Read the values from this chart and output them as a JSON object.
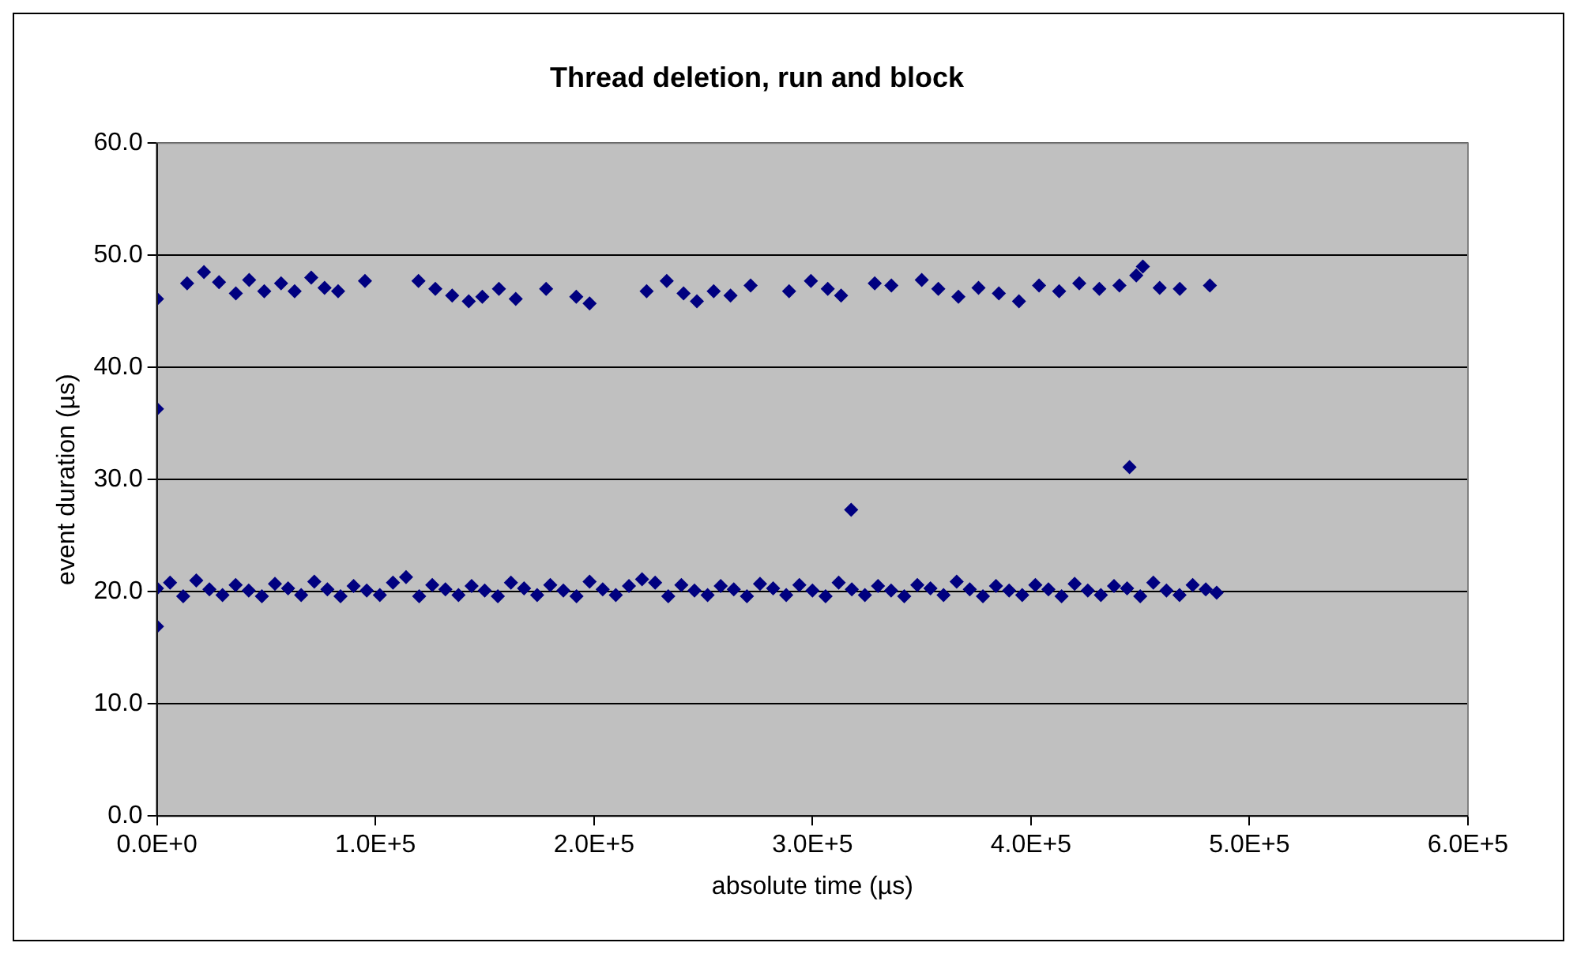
{
  "chart_data": {
    "type": "scatter",
    "title": "Thread deletion, run and block",
    "xlabel": "absolute time (µs)",
    "ylabel": "event duration (µs)",
    "series": [
      {
        "color": "#000080",
        "x": [
          0,
          13800,
          21500,
          28400,
          36100,
          42200,
          49100,
          56800,
          63000,
          70600,
          76700,
          82900,
          95200,
          119700,
          127400,
          135100,
          142700,
          148900,
          156500,
          164200,
          178100,
          191900,
          198000,
          224100,
          233300,
          241000,
          247100,
          254800,
          262500,
          271700,
          289300,
          299300,
          307000,
          313100,
          328500,
          336100,
          350000,
          357600,
          366800,
          376000,
          385300,
          394500,
          403700,
          412900,
          422100,
          431300,
          440500,
          448200,
          451200,
          458900,
          468100,
          481900,
          0,
          317700,
          445100,
          0,
          0,
          6000,
          12000,
          18000,
          24000,
          30000,
          36000,
          42000,
          48000,
          54000,
          60000,
          66000,
          72000,
          78000,
          84000,
          90000,
          96000,
          102000,
          108000,
          114000,
          120000,
          126000,
          132000,
          138000,
          144000,
          150000,
          156000,
          162000,
          168000,
          174000,
          180000,
          186000,
          192000,
          198000,
          204000,
          210000,
          216000,
          222000,
          228000,
          234000,
          240000,
          246000,
          252000,
          258000,
          264000,
          270000,
          276000,
          282000,
          288000,
          294000,
          300000,
          306000,
          312000,
          318000,
          324000,
          330000,
          336000,
          342000,
          348000,
          354000,
          360000,
          366000,
          372000,
          378000,
          384000,
          390000,
          396000,
          402000,
          408000,
          414000,
          420000,
          426000,
          432000,
          438000,
          444000,
          450000,
          456000,
          462000,
          468000,
          474000,
          480000,
          485000
        ],
        "values": [
          46.1,
          47.5,
          48.5,
          47.6,
          46.6,
          47.8,
          46.8,
          47.5,
          46.8,
          48.0,
          47.1,
          46.8,
          47.7,
          47.7,
          47.0,
          46.4,
          45.9,
          46.3,
          47.0,
          46.1,
          47.0,
          46.3,
          45.7,
          46.8,
          47.7,
          46.6,
          45.9,
          46.8,
          46.4,
          47.3,
          46.8,
          47.7,
          47.0,
          46.4,
          47.5,
          47.3,
          47.8,
          47.0,
          46.3,
          47.1,
          46.6,
          45.9,
          47.3,
          46.8,
          47.5,
          47.0,
          47.3,
          48.2,
          49.0,
          47.1,
          47.0,
          47.3,
          36.3,
          27.3,
          31.1,
          16.9,
          20.3,
          20.8,
          19.6,
          21.0,
          20.2,
          19.7,
          20.6,
          20.1,
          19.6,
          20.7,
          20.3,
          19.7,
          20.9,
          20.2,
          19.6,
          20.5,
          20.1,
          19.7,
          20.8,
          21.3,
          19.6,
          20.6,
          20.2,
          19.7,
          20.5,
          20.1,
          19.6,
          20.8,
          20.3,
          19.7,
          20.6,
          20.1,
          19.6,
          20.9,
          20.2,
          19.7,
          20.5,
          21.1,
          20.8,
          19.6,
          20.6,
          20.1,
          19.7,
          20.5,
          20.2,
          19.6,
          20.7,
          20.3,
          19.7,
          20.6,
          20.1,
          19.6,
          20.8,
          20.2,
          19.7,
          20.5,
          20.1,
          19.6,
          20.6,
          20.3,
          19.7,
          20.9,
          20.2,
          19.6,
          20.5,
          20.1,
          19.7,
          20.6,
          20.2,
          19.6,
          20.7,
          20.1,
          19.7,
          20.5,
          20.3,
          19.6,
          20.8,
          20.1,
          19.7,
          20.6,
          20.2,
          19.9
        ]
      }
    ],
    "xlim": [
      0,
      600000
    ],
    "xticks": [
      {
        "value": 0,
        "label": "0.0E+0"
      },
      {
        "value": 100000,
        "label": "1.0E+5"
      },
      {
        "value": 200000,
        "label": "2.0E+5"
      },
      {
        "value": 300000,
        "label": "3.0E+5"
      },
      {
        "value": 400000,
        "label": "4.0E+5"
      },
      {
        "value": 500000,
        "label": "5.0E+5"
      },
      {
        "value": 600000,
        "label": "6.0E+5"
      }
    ],
    "ylim": [
      0,
      60
    ],
    "yticks": [
      {
        "value": 0,
        "label": "0.0"
      },
      {
        "value": 10,
        "label": "10.0"
      },
      {
        "value": 20,
        "label": "20.0"
      },
      {
        "value": 30,
        "label": "30.0"
      },
      {
        "value": 40,
        "label": "40.0"
      },
      {
        "value": 50,
        "label": "50.0"
      },
      {
        "value": 60,
        "label": "60.0"
      }
    ],
    "grid": "y",
    "legend": false,
    "marker": "diamond"
  }
}
